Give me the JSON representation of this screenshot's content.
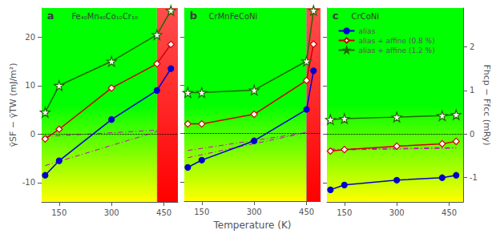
{
  "chart_data": [
    {
      "type": "line",
      "panel_label": "a",
      "title": "Fe₄₀Mn₄₀Co₁₀Cr₁₀",
      "ylabel": "γ̄SF − γ̄TW (mJ/m²)",
      "xlim": [
        100,
        490
      ],
      "ylim": [
        -14,
        26
      ],
      "xticks": [
        150,
        300,
        450
      ],
      "yticks": [
        -10,
        0,
        10,
        20
      ],
      "grid": false,
      "vline": 430,
      "hline": 0,
      "regions": [
        {
          "x": [
            100,
            430
          ],
          "colors": [
            "#ffff00",
            "#00ff00",
            "#00ff00"
          ]
        },
        {
          "x": [
            430,
            490
          ],
          "colors": [
            "#ff0000",
            "#ff4d4d"
          ]
        }
      ],
      "series": [
        {
          "type": "line",
          "color": "#cc00cc",
          "line_style": "dashdot",
          "marker": "none",
          "x": [
            110,
            430
          ],
          "values": [
            -6.5,
            0.5
          ]
        },
        {
          "type": "line",
          "color": "#cc00cc",
          "line_style": "dashdot",
          "marker": "none",
          "x": [
            110,
            430
          ],
          "values": [
            -0.5,
            0.8
          ]
        },
        {
          "type": "line",
          "name": "alias",
          "color": "#0000cc",
          "line_style": "solid",
          "marker": "circle",
          "x": [
            110,
            150,
            300,
            430,
            470
          ],
          "values": [
            -8.5,
            -5.5,
            3.0,
            9.0,
            13.5
          ]
        },
        {
          "type": "line",
          "name": "alias + affine (0.8 %)",
          "color": "#cc0000",
          "line_style": "solid",
          "marker": "diamond-open",
          "x": [
            110,
            150,
            300,
            430,
            470
          ],
          "values": [
            -1.0,
            1.0,
            9.5,
            14.5,
            18.5
          ]
        },
        {
          "type": "line",
          "name": "alias + affine (1.2 %)",
          "color": "#226600",
          "line_style": "solid",
          "marker": "star-open",
          "x": [
            110,
            150,
            300,
            430,
            470
          ],
          "values": [
            4.5,
            10.0,
            15.0,
            20.5,
            25.5
          ]
        }
      ]
    },
    {
      "type": "line",
      "panel_label": "b",
      "title": "CrMnFeCoNi",
      "xlabel": "Temperature (K)",
      "xlim": [
        100,
        490
      ],
      "ylim": [
        -14,
        26
      ],
      "xticks": [
        150,
        300,
        450
      ],
      "yticks": [
        -10,
        0,
        10,
        20
      ],
      "tick_labels": "x",
      "grid": false,
      "vline": 450,
      "hline": 0,
      "regions": [
        {
          "x": [
            100,
            450
          ],
          "colors": [
            "#ffff00",
            "#00ff00",
            "#00ff00"
          ]
        },
        {
          "x": [
            450,
            490
          ],
          "colors": [
            "#ff0000",
            "#ff4d4d"
          ]
        }
      ],
      "series": [
        {
          "type": "line",
          "color": "#cc00cc",
          "line_style": "dashdot",
          "marker": "none",
          "x": [
            110,
            450
          ],
          "values": [
            -5.0,
            0.2
          ]
        },
        {
          "type": "line",
          "color": "#cc00cc",
          "line_style": "dashdot",
          "marker": "none",
          "x": [
            110,
            450
          ],
          "values": [
            -3.5,
            0.2
          ]
        },
        {
          "type": "line",
          "name": "alias",
          "color": "#0000cc",
          "line_style": "solid",
          "marker": "circle",
          "x": [
            110,
            150,
            300,
            450,
            470
          ],
          "values": [
            -7.0,
            -5.5,
            -1.5,
            5.0,
            13.0
          ]
        },
        {
          "type": "line",
          "name": "alias + affine (0.8 %)",
          "color": "#cc0000",
          "line_style": "solid",
          "marker": "diamond-open",
          "x": [
            110,
            150,
            300,
            450,
            470
          ],
          "values": [
            2.0,
            2.0,
            4.0,
            11.0,
            18.5
          ]
        },
        {
          "type": "line",
          "name": "alias + affine (1.2 %)",
          "color": "#226600",
          "line_style": "solid",
          "marker": "star-open",
          "x": [
            110,
            150,
            300,
            450,
            470
          ],
          "values": [
            8.5,
            8.5,
            9.0,
            15.0,
            25.5
          ]
        }
      ]
    },
    {
      "type": "line",
      "panel_label": "c",
      "title": "CrCoNi",
      "y2label": "Fhcp − Ffcc (mRy)",
      "xlim": [
        100,
        490
      ],
      "ylim": [
        -14,
        26
      ],
      "xticks": [
        150,
        300,
        450
      ],
      "yticks": [
        -10,
        0,
        10,
        20
      ],
      "y2lim": [
        -1.56,
        2.89
      ],
      "y2ticks": [
        -1,
        0,
        1,
        2
      ],
      "tick_labels": "x",
      "grid": false,
      "hline": 0,
      "legend": "upper left",
      "regions": [
        {
          "x": [
            100,
            490
          ],
          "colors": [
            "#ffff00",
            "#00ff00",
            "#00ff00"
          ]
        }
      ],
      "series": [
        {
          "type": "line",
          "color": "#cc00cc",
          "line_style": "dashdot",
          "marker": "none",
          "x": [
            110,
            470
          ],
          "values": [
            -3.1,
            -2.8
          ]
        },
        {
          "type": "line",
          "color": "#cc00cc",
          "line_style": "dashdot",
          "marker": "none",
          "x": [
            110,
            470
          ],
          "values": [
            -3.3,
            -2.9
          ]
        },
        {
          "type": "line",
          "name": "alias",
          "color": "#0000cc",
          "line_style": "solid",
          "marker": "circle",
          "x": [
            110,
            150,
            300,
            430,
            470
          ],
          "values": [
            -11.5,
            -10.5,
            -9.5,
            -9.0,
            -8.5
          ]
        },
        {
          "type": "line",
          "name": "alias + affine (0.8 %)",
          "color": "#cc0000",
          "line_style": "solid",
          "marker": "diamond-open",
          "x": [
            110,
            150,
            300,
            430,
            470
          ],
          "values": [
            -3.5,
            -3.2,
            -2.5,
            -2.0,
            -1.5
          ]
        },
        {
          "type": "line",
          "name": "alias + affine (1.2 %)",
          "color": "#226600",
          "line_style": "solid",
          "marker": "star-open",
          "x": [
            110,
            150,
            300,
            430,
            470
          ],
          "values": [
            3.0,
            3.2,
            3.5,
            3.8,
            4.0
          ]
        }
      ]
    }
  ]
}
